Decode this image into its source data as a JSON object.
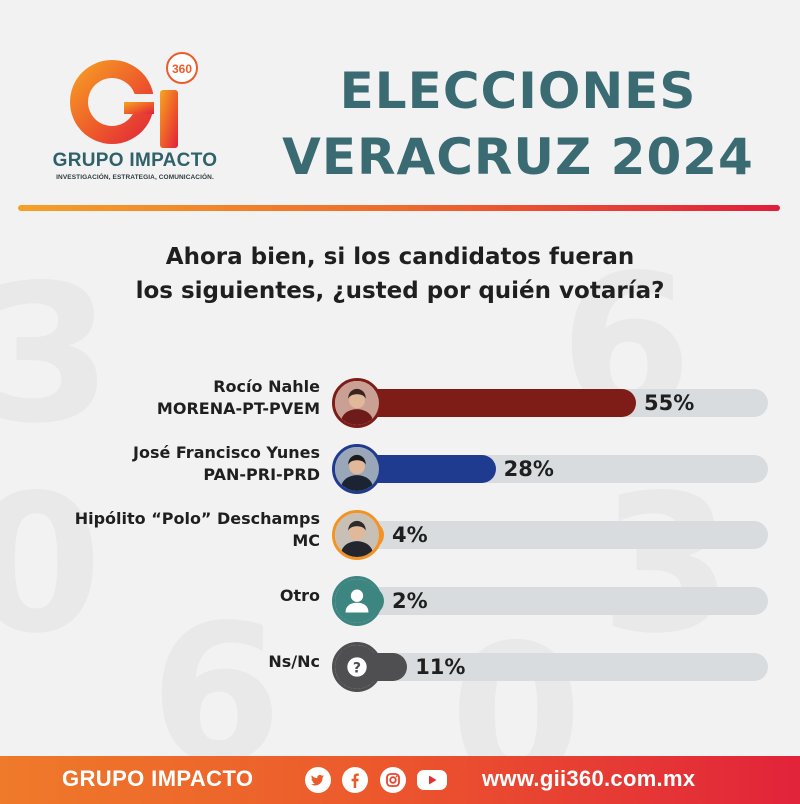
{
  "header": {
    "logo_letters": "Gi",
    "logo_badge": "360",
    "logo_name": "GRUPO IMPACTO",
    "logo_tagline": "INVESTIGACIÓN, ESTRATEGIA, COMUNICACIÓN.",
    "title_line1": "ELECCIONES",
    "title_line2": "VERACRUZ 2024"
  },
  "question": {
    "line1": "Ahora bien, si los candidatos fueran",
    "line2": "los siguientes, ¿usted por quién votaría?"
  },
  "chart_data": {
    "type": "bar",
    "orientation": "horizontal",
    "unit": "%",
    "categories": [
      {
        "name": "Rocío Nahle",
        "party": "MORENA-PT-PVEM"
      },
      {
        "name": "José Francisco Yunes",
        "party": "PAN-PRI-PRD"
      },
      {
        "name": "Hipólito “Polo” Deschamps",
        "party": "MC"
      },
      {
        "name": "Otro",
        "party": ""
      },
      {
        "name": "Ns/Nc",
        "party": ""
      }
    ],
    "values": [
      55,
      28,
      4,
      2,
      11
    ],
    "value_labels": [
      "55%",
      "28%",
      "4%",
      "2%",
      "11%"
    ],
    "colors": [
      "#7e1c17",
      "#1f3b8f",
      "#f39323",
      "#3d8581",
      "#4f4f51"
    ],
    "track_color": "#d8dcdf",
    "xlim": [
      0,
      100
    ],
    "avatars": [
      "candidate-photo",
      "candidate-photo",
      "candidate-photo",
      "person-icon",
      "question-mark-icon"
    ]
  },
  "footer": {
    "brand": "GRUPO IMPACTO",
    "social_icons": [
      "twitter-icon",
      "facebook-icon",
      "instagram-icon",
      "youtube-icon"
    ],
    "url": "www.gii360.com.mx"
  },
  "colors": {
    "title": "#3b6b72",
    "accent_orange": "#ef7a2a",
    "accent_red": "#e2233a"
  }
}
